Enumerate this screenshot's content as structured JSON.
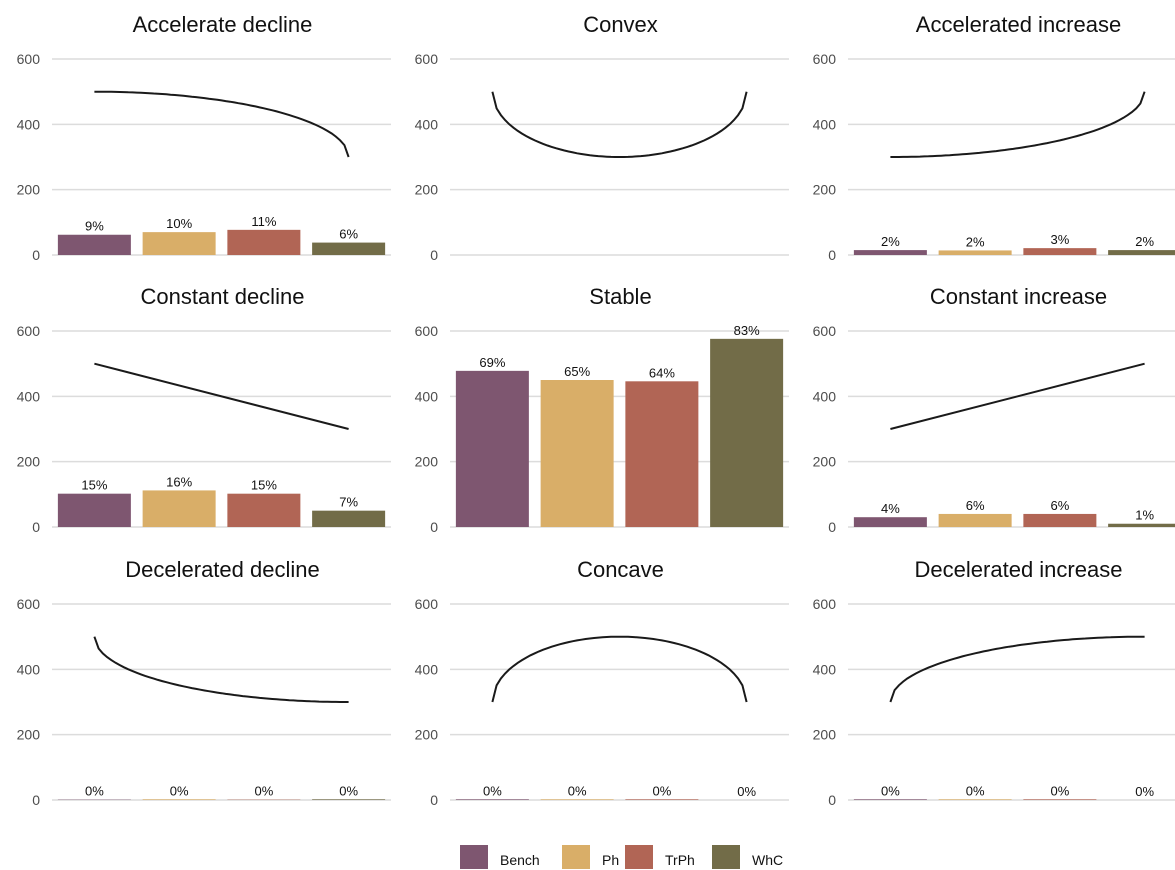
{
  "chart_data": {
    "type": "bar",
    "categories": [
      "Bench",
      "Ph",
      "TrPh",
      "WhC"
    ],
    "colors": {
      "Bench": "#7e5670",
      "Ph": "#d9ae68",
      "TrPh": "#b16555",
      "WhC": "#726c48"
    },
    "ylim": [
      0,
      600
    ],
    "yticks": [
      0,
      200,
      400,
      600
    ],
    "legend_position": "bottom",
    "panels": [
      {
        "title": "Accelerate decline",
        "curve": "accelerate_decline",
        "values": [
          62,
          70,
          77,
          38
        ],
        "labels": [
          "9%",
          "10%",
          "11%",
          "6%"
        ]
      },
      {
        "title": "Convex",
        "curve": "convex",
        "values": [],
        "labels": []
      },
      {
        "title": "Accelerated increase",
        "curve": "accelerated_increase",
        "values": [
          15,
          14,
          21,
          15
        ],
        "labels": [
          "2%",
          "2%",
          "3%",
          "2%"
        ]
      },
      {
        "title": "Constant decline",
        "curve": "constant_decline",
        "values": [
          102,
          112,
          102,
          50
        ],
        "labels": [
          "15%",
          "16%",
          "15%",
          "7%"
        ]
      },
      {
        "title": "Stable",
        "curve": "none",
        "values": [
          478,
          450,
          446,
          576
        ],
        "labels": [
          "69%",
          "65%",
          "64%",
          "83%"
        ]
      },
      {
        "title": "Constant increase",
        "curve": "constant_increase",
        "values": [
          30,
          40,
          40,
          10
        ],
        "labels": [
          "4%",
          "6%",
          "6%",
          "1%"
        ]
      },
      {
        "title": "Decelerated decline",
        "curve": "decelerated_decline",
        "values": [
          1,
          2,
          1,
          2
        ],
        "labels": [
          "0%",
          "0%",
          "0%",
          "0%"
        ]
      },
      {
        "title": "Concave",
        "curve": "concave",
        "values": [
          2,
          2,
          2,
          0
        ],
        "labels": [
          "0%",
          "0%",
          "0%",
          "0%"
        ]
      },
      {
        "title": "Decelerated increase",
        "curve": "decelerated_increase",
        "values": [
          2,
          2,
          2,
          0
        ],
        "labels": [
          "0%",
          "0%",
          "0%",
          "0%"
        ]
      }
    ],
    "legend": [
      {
        "name": "Bench",
        "color": "#7e5670"
      },
      {
        "name": "Ph",
        "color": "#d9ae68"
      },
      {
        "name": "TrPh",
        "color": "#b16555"
      },
      {
        "name": "WhC",
        "color": "#726c48"
      }
    ]
  }
}
